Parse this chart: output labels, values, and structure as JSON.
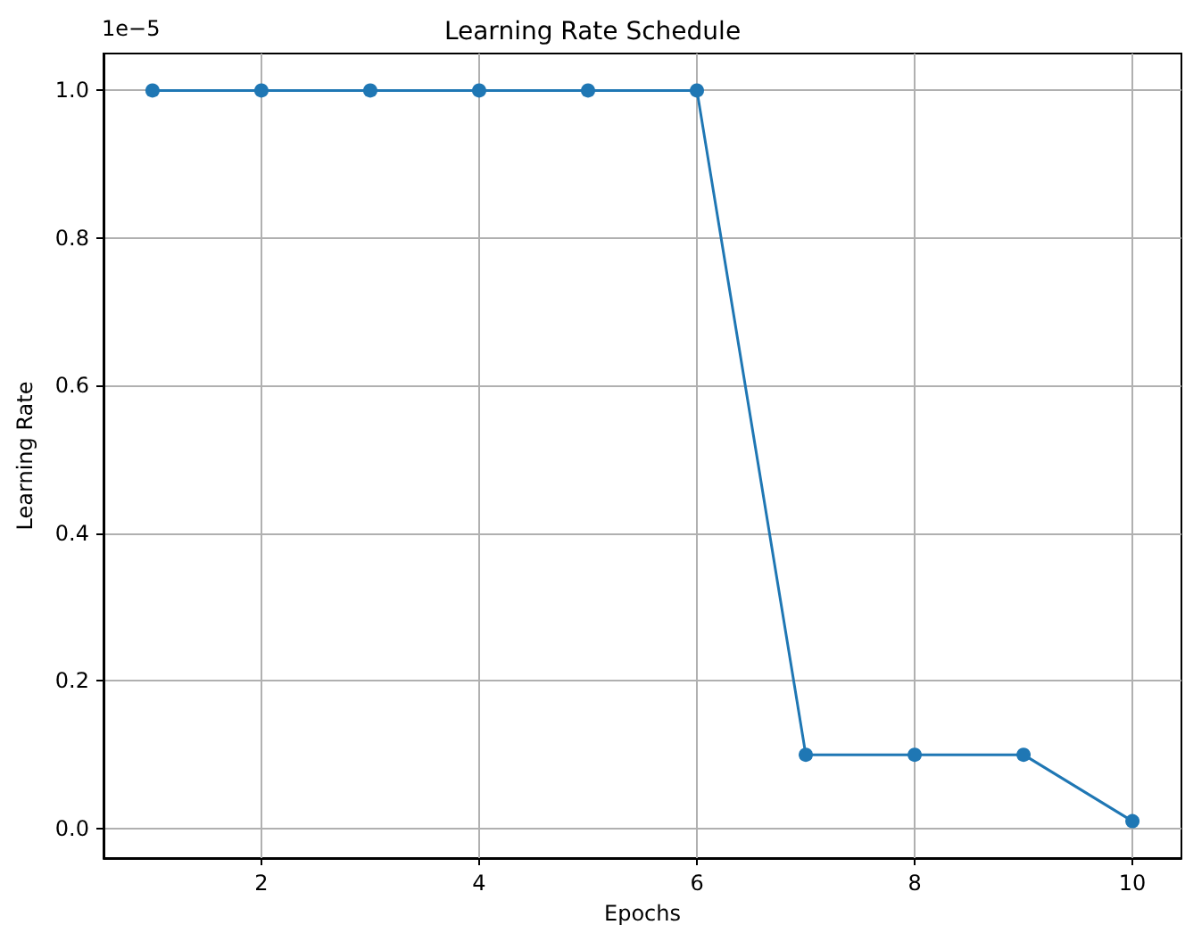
{
  "chart_data": {
    "type": "line",
    "title": "Learning Rate Schedule",
    "xlabel": "Epochs",
    "ylabel": "Learning Rate",
    "x": [
      1,
      2,
      3,
      4,
      5,
      6,
      7,
      8,
      9,
      10
    ],
    "series": [
      {
        "color": "#1f77b4",
        "values": [
          1.0,
          1.0,
          1.0,
          1.0,
          1.0,
          1.0,
          0.1,
          0.1,
          0.1,
          0.01
        ]
      }
    ],
    "xlim": [
      0.55,
      10.45
    ],
    "xticks": [
      2,
      4,
      6,
      8,
      10
    ],
    "ylim": [
      -0.04,
      1.05
    ],
    "yticks": [
      {
        "value": 0,
        "label": "0.0"
      },
      {
        "value": 0.2,
        "label": "0.2"
      },
      {
        "value": 0.4,
        "label": "0.4"
      },
      {
        "value": 0.6,
        "label": "0.6"
      },
      {
        "value": 0.8,
        "label": "0.8"
      },
      {
        "value": 1,
        "label": "1.0"
      }
    ],
    "annotations": [
      "1e−5"
    ],
    "grid": true,
    "marker": "circle",
    "line_style": "solid"
  }
}
